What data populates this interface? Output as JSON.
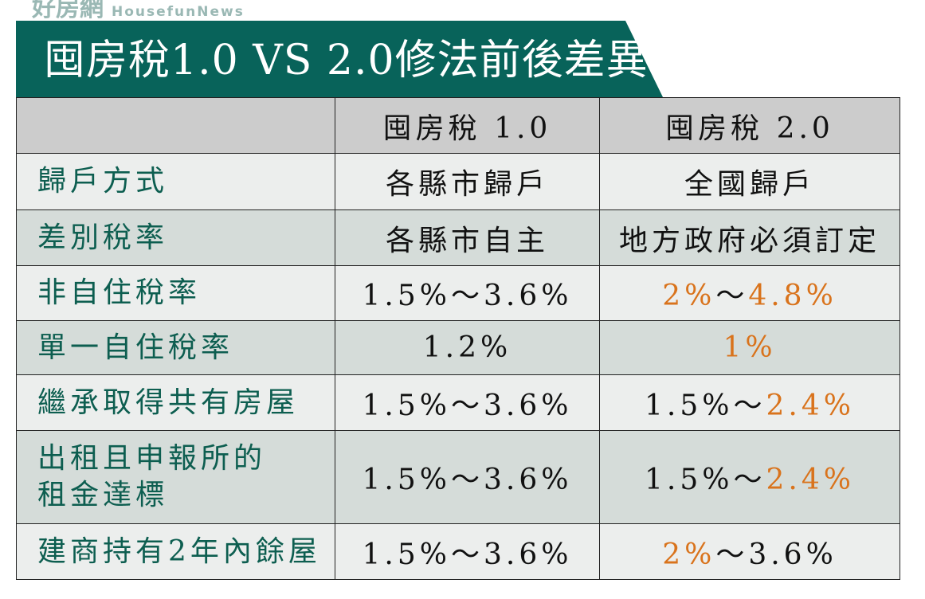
{
  "logo": {
    "zh": "好房網",
    "en": "HousefunNews"
  },
  "title": "囤房稅1.0 VS 2.0修法前後差異",
  "colors": {
    "banner": "#08635a",
    "label_text": "#0d5e50",
    "highlight": "#d9731c"
  },
  "table": {
    "headers": [
      "",
      "囤房稅 1.0",
      "囤房稅 2.0"
    ],
    "rows": [
      {
        "label": "歸戶方式",
        "v1": [
          {
            "t": "各縣市歸戶"
          }
        ],
        "v2": [
          {
            "t": "全國歸戶"
          }
        ]
      },
      {
        "label": "差別稅率",
        "v1": [
          {
            "t": "各縣市自主"
          }
        ],
        "v2": [
          {
            "t": "地方政府必須訂定"
          }
        ]
      },
      {
        "label": "非自住稅率",
        "v1": [
          {
            "t": "1.5%～3.6%"
          }
        ],
        "v2": [
          {
            "t": "2%",
            "hl": true
          },
          {
            "t": "～"
          },
          {
            "t": "4.8%",
            "hl": true
          }
        ]
      },
      {
        "label": "單一自住稅率",
        "v1": [
          {
            "t": "1.2%"
          }
        ],
        "v2": [
          {
            "t": "1%",
            "hl": true
          }
        ]
      },
      {
        "label": "繼承取得共有房屋",
        "v1": [
          {
            "t": "1.5%～3.6%"
          }
        ],
        "v2": [
          {
            "t": "1.5%～"
          },
          {
            "t": "2.4%",
            "hl": true
          }
        ]
      },
      {
        "label": "出租且申報所的\n租金達標",
        "v1": [
          {
            "t": "1.5%～3.6%"
          }
        ],
        "v2": [
          {
            "t": "1.5%～"
          },
          {
            "t": "2.4%",
            "hl": true
          }
        ]
      },
      {
        "label": "建商持有2年內餘屋",
        "v1": [
          {
            "t": "1.5%～3.6%"
          }
        ],
        "v2": [
          {
            "t": "2%",
            "hl": true
          },
          {
            "t": "～3.6%"
          }
        ]
      }
    ]
  }
}
